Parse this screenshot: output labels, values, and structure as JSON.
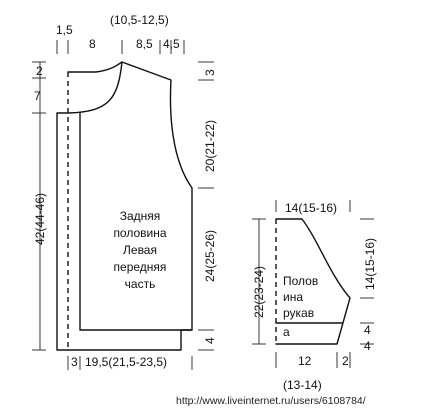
{
  "body": {
    "label_lines": [
      "Задняя",
      "половина",
      "Левая",
      "передняя",
      "часть"
    ],
    "top_labels": {
      "left_margin": "1,5",
      "left_width": "8",
      "neck": "(10,5-12,5)",
      "shoulder": "8,5",
      "shoulder_alt": "4,5"
    },
    "left_labels": {
      "top_small": "2",
      "neck_depth": "7",
      "total_length": "42(44-46)"
    },
    "right_labels": {
      "shoulder_drop": "3",
      "armhole": "20(21-22)",
      "side": "24(25-26)",
      "hem": "4"
    },
    "bottom_labels": {
      "left_margin": "3",
      "width": "19,5(21,5-23,5)"
    }
  },
  "sleeve": {
    "label_lines": [
      "Полов",
      "ина",
      "рукав",
      "а"
    ],
    "top_width": "14(15-16)",
    "left_length": "22(23-24)",
    "right_height": "14(15-16)",
    "cuff": "4",
    "cuff_alt": "4",
    "bottom_width": "12",
    "bottom_width_alt": "(13-14)",
    "bottom_side": "2"
  },
  "watermark": "http://www.liveinternet.ru/users/6108784/"
}
